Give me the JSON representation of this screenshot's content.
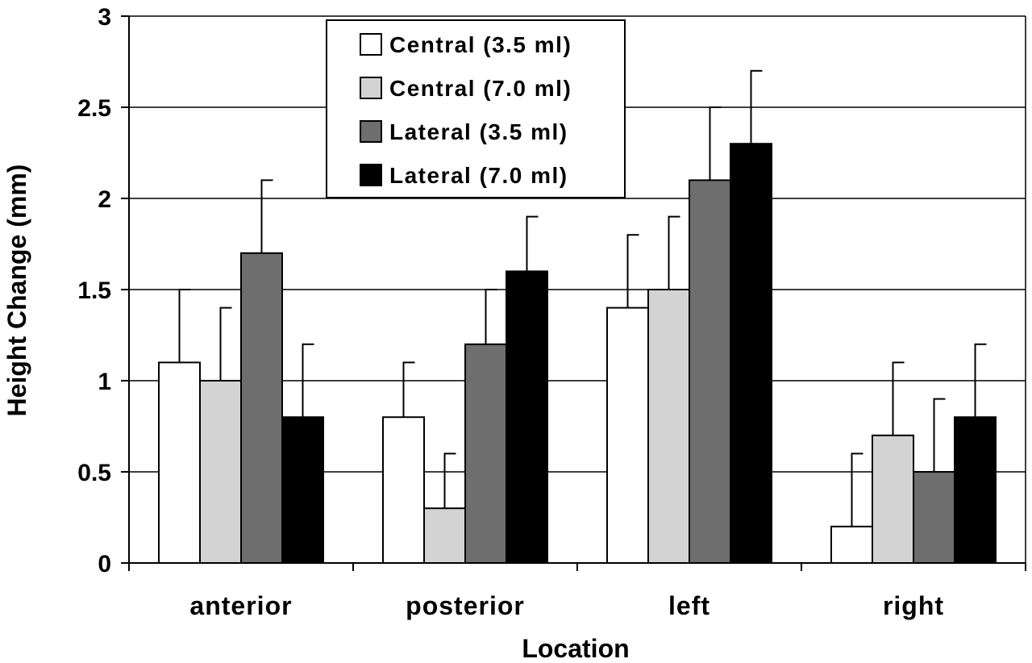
{
  "chart_data": {
    "type": "bar",
    "categories": [
      "anterior",
      "posterior",
      "left",
      "right"
    ],
    "series": [
      {
        "name": "Central (3.5 ml)",
        "values": [
          1.1,
          0.8,
          1.4,
          0.2
        ],
        "errors": [
          0.4,
          0.3,
          0.4,
          0.4
        ],
        "color": "#ffffff"
      },
      {
        "name": "Central (7.0 ml)",
        "values": [
          1.0,
          0.3,
          1.5,
          0.7
        ],
        "errors": [
          0.4,
          0.3,
          0.4,
          0.4
        ],
        "color": "#d3d3d3"
      },
      {
        "name": "Lateral (3.5 ml)",
        "values": [
          1.7,
          1.2,
          2.1,
          0.5
        ],
        "errors": [
          0.4,
          0.3,
          0.4,
          0.4
        ],
        "color": "#6e6e6e"
      },
      {
        "name": "Lateral (7.0 ml)",
        "values": [
          0.8,
          1.6,
          2.3,
          0.8
        ],
        "errors": [
          0.4,
          0.3,
          0.4,
          0.4
        ],
        "color": "#000000"
      }
    ],
    "xlabel": "Location",
    "ylabel": "Height Change (mm)",
    "ylim": [
      0,
      3
    ],
    "yticks": [
      "0",
      "0.5",
      "1",
      "1.5",
      "2",
      "2.5",
      "3"
    ],
    "grid": true,
    "legend_position": "top-center"
  }
}
